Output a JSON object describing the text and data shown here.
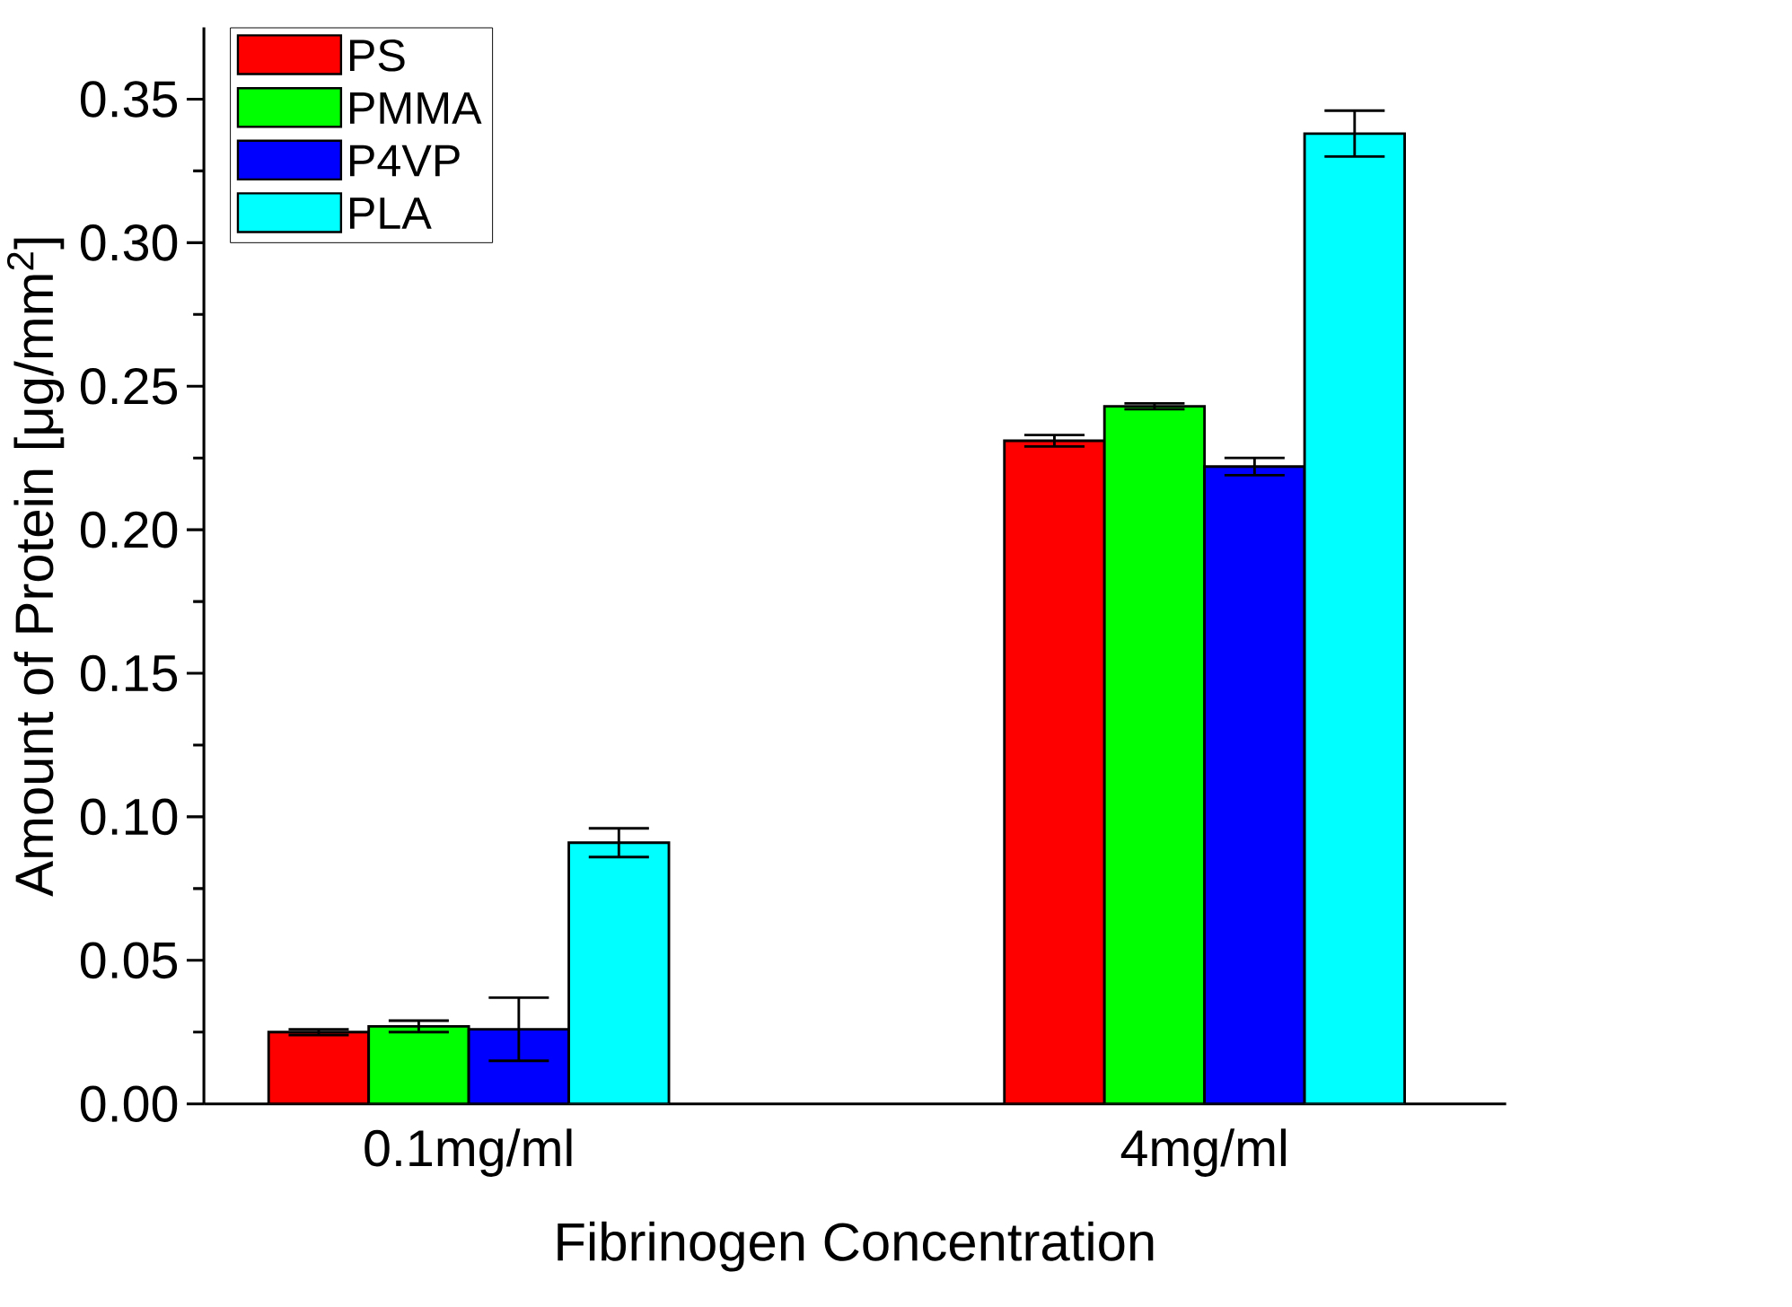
{
  "chart_data": {
    "type": "bar",
    "xlabel": "Fibrinogen Concentration",
    "ylabel": "Amount of Protein [μg/mm$^{2}$]",
    "categories": [
      "0.1mg/ml",
      "4mg/ml"
    ],
    "series": [
      {
        "name": "PS",
        "color": "#ff0000",
        "values": [
          0.025,
          0.231
        ],
        "errors": [
          0.001,
          0.002
        ]
      },
      {
        "name": "PMMA",
        "color": "#00ff00",
        "values": [
          0.027,
          0.243
        ],
        "errors": [
          0.002,
          0.001
        ]
      },
      {
        "name": "P4VP",
        "color": "#0000ff",
        "values": [
          0.026,
          0.222
        ],
        "errors": [
          0.011,
          0.003
        ]
      },
      {
        "name": "PLA",
        "color": "#00ffff",
        "values": [
          0.091,
          0.338
        ],
        "errors": [
          0.005,
          0.008
        ]
      }
    ],
    "ylim": [
      0,
      0.375
    ],
    "yticks": [
      {
        "value": 0,
        "label": "0.00"
      },
      {
        "value": 0.05,
        "label": "0.05"
      },
      {
        "value": 0.1,
        "label": "0.10"
      },
      {
        "value": 0.15,
        "label": "0.15"
      },
      {
        "value": 0.2,
        "label": "0.20"
      },
      {
        "value": 0.25,
        "label": "0.25"
      },
      {
        "value": 0.3,
        "label": "0.30"
      },
      {
        "value": 0.35,
        "label": "0.35"
      }
    ],
    "legend": "top left",
    "grid": false
  }
}
